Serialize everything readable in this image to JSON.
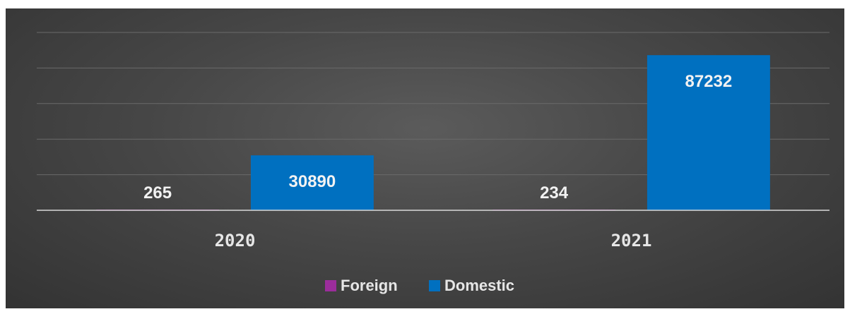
{
  "chart_data": {
    "type": "bar",
    "categories": [
      "2020",
      "2021"
    ],
    "series": [
      {
        "name": "Foreign",
        "values": [
          265,
          234
        ],
        "color": "#9b2d9b"
      },
      {
        "name": "Domestic",
        "values": [
          30890,
          87232
        ],
        "color": "#0070c0"
      }
    ],
    "ylim": [
      0,
      100000
    ],
    "grid": true,
    "legend": "bottom",
    "title": "",
    "xlabel": "",
    "ylabel": ""
  }
}
